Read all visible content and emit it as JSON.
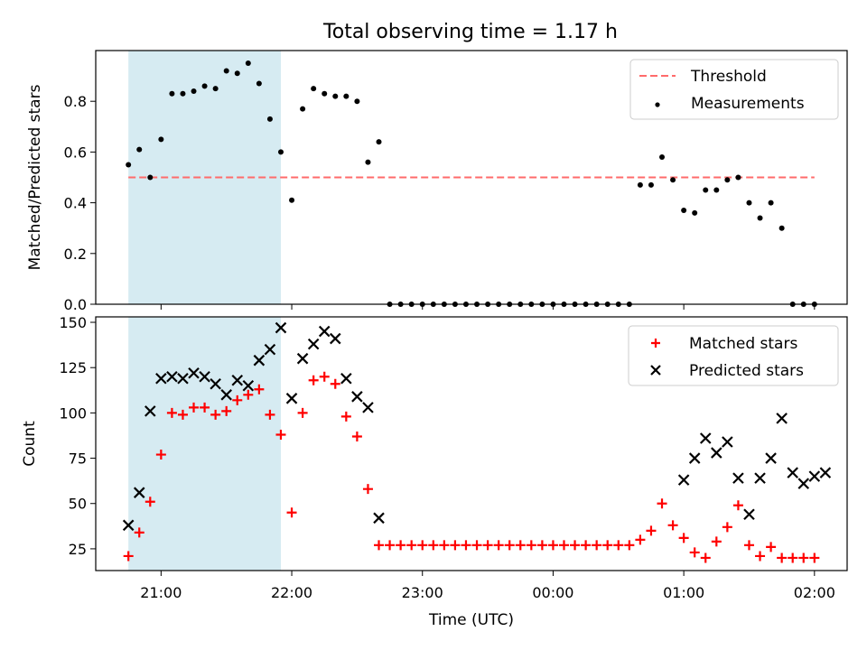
{
  "title": "Total observing time = 1.17 h",
  "xlabel": "Time (UTC)",
  "x_tick_labels": [
    "21:00",
    "22:00",
    "23:00",
    "00:00",
    "01:00",
    "02:00"
  ],
  "chart_data": [
    {
      "type": "scatter",
      "panel": "top",
      "title": "Total observing time = 1.17 h",
      "xlabel": "",
      "ylabel": "Matched/Predicted stars",
      "xlim": [
        "20:45",
        "02:30"
      ],
      "ylim": [
        0,
        1.0
      ],
      "y_ticks": [
        0.0,
        0.2,
        0.4,
        0.6,
        0.8
      ],
      "y_tick_labels": [
        "0.0",
        "0.2",
        "0.4",
        "0.6",
        "0.8"
      ],
      "grid": false,
      "legend_position": "top-right",
      "shaded_interval": [
        "20:45",
        "21:55"
      ],
      "threshold": {
        "name": "Threshold",
        "value": 0.5,
        "from": "20:45",
        "to": "02:00",
        "color": "#ff6b6b"
      },
      "series": [
        {
          "name": "Measurements",
          "color": "#000000",
          "x": [
            "20:45",
            "20:50",
            "20:55",
            "21:00",
            "21:05",
            "21:10",
            "21:15",
            "21:20",
            "21:25",
            "21:30",
            "21:35",
            "21:40",
            "21:45",
            "21:50",
            "21:55",
            "22:00",
            "22:05",
            "22:10",
            "22:15",
            "22:20",
            "22:25",
            "22:30",
            "22:35",
            "22:40",
            "22:45",
            "22:50",
            "22:55",
            "23:00",
            "23:05",
            "23:10",
            "23:15",
            "23:20",
            "23:25",
            "23:30",
            "23:35",
            "23:40",
            "23:45",
            "23:50",
            "23:55",
            "00:00",
            "00:05",
            "00:10",
            "00:15",
            "00:20",
            "00:25",
            "00:30",
            "00:35",
            "00:40",
            "00:45",
            "00:50",
            "00:55",
            "01:00",
            "01:05",
            "01:10",
            "01:15",
            "01:20",
            "01:25",
            "01:30",
            "01:35",
            "01:40",
            "01:45",
            "01:50",
            "01:55",
            "02:00"
          ],
          "y": [
            0.55,
            0.61,
            0.5,
            0.65,
            0.83,
            0.83,
            0.84,
            0.86,
            0.85,
            0.92,
            0.91,
            0.95,
            0.87,
            0.73,
            0.6,
            0.41,
            0.77,
            0.85,
            0.83,
            0.82,
            0.82,
            0.8,
            0.56,
            0.64,
            0,
            0,
            0,
            0,
            0,
            0,
            0,
            0,
            0,
            0,
            0,
            0,
            0,
            0,
            0,
            0,
            0,
            0,
            0,
            0,
            0,
            0,
            0,
            0.47,
            0.47,
            0.58,
            0.49,
            0.37,
            0.36,
            0.45,
            0.45,
            0.49,
            0.5,
            0.4,
            0.34,
            0.4,
            0.3,
            0,
            0,
            0
          ]
        }
      ]
    },
    {
      "type": "scatter",
      "panel": "bottom",
      "xlabel": "Time (UTC)",
      "ylabel": "Count",
      "xlim": [
        "20:45",
        "02:30"
      ],
      "ylim": [
        13,
        153
      ],
      "y_ticks": [
        25,
        50,
        75,
        100,
        125,
        150
      ],
      "y_tick_labels": [
        "25",
        "50",
        "75",
        "100",
        "125",
        "150"
      ],
      "x_tick_labels": [
        "21:00",
        "22:00",
        "23:00",
        "00:00",
        "01:00",
        "02:00"
      ],
      "grid": false,
      "legend_position": "top-right",
      "shaded_interval": [
        "20:45",
        "21:55"
      ],
      "series": [
        {
          "name": "Matched stars",
          "marker": "plus",
          "color": "#ff0000",
          "x": [
            "20:45",
            "20:50",
            "20:55",
            "21:00",
            "21:05",
            "21:10",
            "21:15",
            "21:20",
            "21:25",
            "21:30",
            "21:35",
            "21:40",
            "21:45",
            "21:50",
            "21:55",
            "22:00",
            "22:05",
            "22:10",
            "22:15",
            "22:20",
            "22:25",
            "22:30",
            "22:35",
            "22:40",
            "22:45",
            "22:50",
            "22:55",
            "23:00",
            "23:05",
            "23:10",
            "23:15",
            "23:20",
            "23:25",
            "23:30",
            "23:35",
            "23:40",
            "23:45",
            "23:50",
            "23:55",
            "00:00",
            "00:05",
            "00:10",
            "00:15",
            "00:20",
            "00:25",
            "00:30",
            "00:35",
            "00:40",
            "00:45",
            "00:50",
            "00:55",
            "01:00",
            "01:05",
            "01:10",
            "01:15",
            "01:20",
            "01:25",
            "01:30",
            "01:35",
            "01:40",
            "01:45",
            "01:50",
            "01:55",
            "02:00"
          ],
          "y": [
            21,
            34,
            51,
            77,
            100,
            99,
            103,
            103,
            99,
            101,
            107,
            110,
            113,
            99,
            88,
            45,
            100,
            118,
            120,
            116,
            98,
            87,
            58,
            27,
            27,
            27,
            27,
            27,
            27,
            27,
            27,
            27,
            27,
            27,
            27,
            27,
            27,
            27,
            27,
            27,
            27,
            27,
            27,
            27,
            27,
            27,
            27,
            30,
            35,
            50,
            38,
            31,
            23,
            20,
            29,
            37,
            49,
            27,
            21,
            26,
            20,
            20,
            20,
            20
          ]
        },
        {
          "name": "Predicted stars",
          "marker": "x",
          "color": "#000000",
          "x": [
            "20:45",
            "20:50",
            "20:55",
            "21:00",
            "21:05",
            "21:10",
            "21:15",
            "21:20",
            "21:25",
            "21:30",
            "21:35",
            "21:40",
            "21:45",
            "21:50",
            "21:55",
            "22:00",
            "22:05",
            "22:10",
            "22:15",
            "22:20",
            "22:25",
            "22:30",
            "22:35",
            "22:40",
            "01:00",
            "01:05",
            "01:10",
            "01:15",
            "01:20",
            "01:25",
            "01:30",
            "01:35",
            "01:40",
            "01:45",
            "01:50",
            "01:55",
            "02:00",
            "02:05",
            "02:10",
            "02:15"
          ],
          "y": [
            38,
            56,
            101,
            119,
            120,
            119,
            122,
            120,
            116,
            110,
            118,
            115,
            129,
            135,
            147,
            108,
            130,
            138,
            145,
            141,
            119,
            109,
            103,
            42,
            63,
            75,
            86,
            78,
            84,
            64,
            44,
            64,
            75,
            97,
            67,
            61,
            65,
            67,
            null,
            null
          ]
        }
      ]
    }
  ]
}
